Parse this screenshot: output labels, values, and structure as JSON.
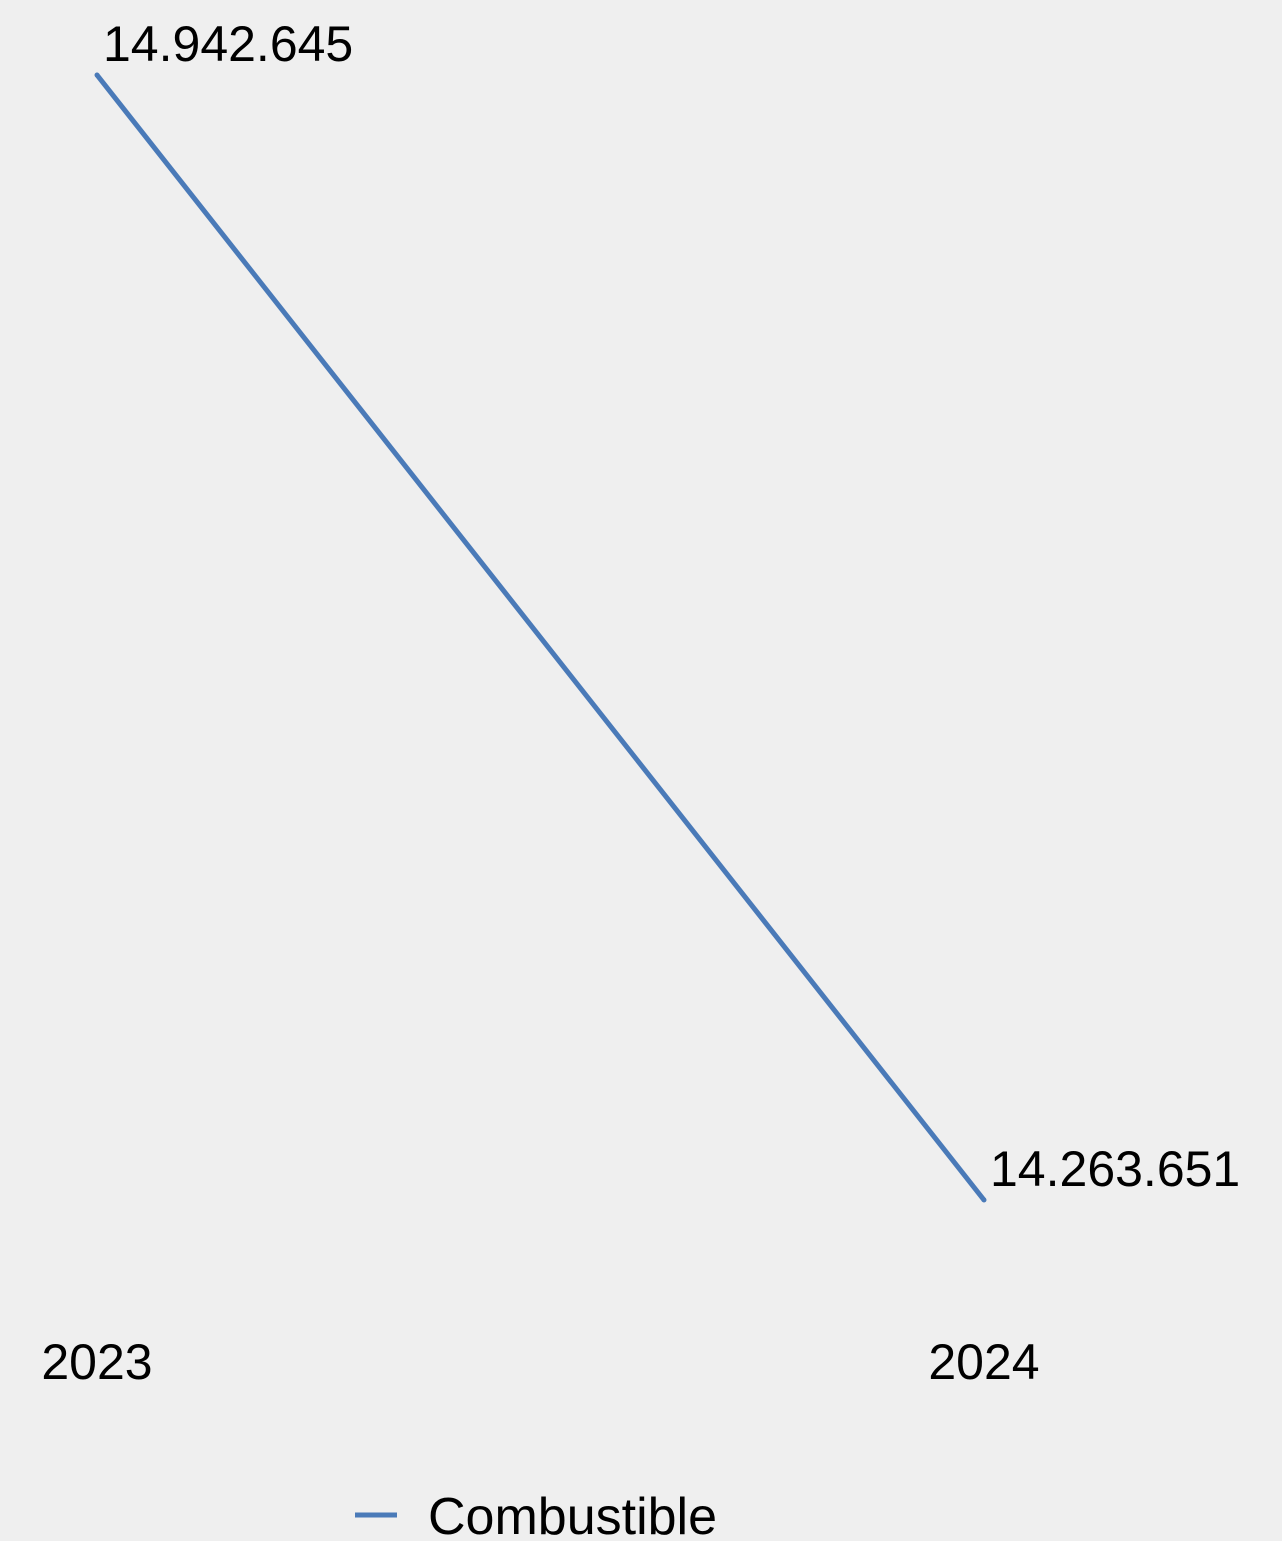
{
  "chart_data": {
    "type": "line",
    "categories": [
      "2023",
      "2024"
    ],
    "series": [
      {
        "name": "Combustible",
        "values": [
          14942645,
          14263651
        ],
        "labels": [
          "14.942.645",
          "14.263.651"
        ],
        "color": "#4a7ab8"
      }
    ],
    "title": "",
    "xlabel": "",
    "ylabel": "",
    "grid": false,
    "legend": "bottom-center",
    "background": "#efefef"
  }
}
